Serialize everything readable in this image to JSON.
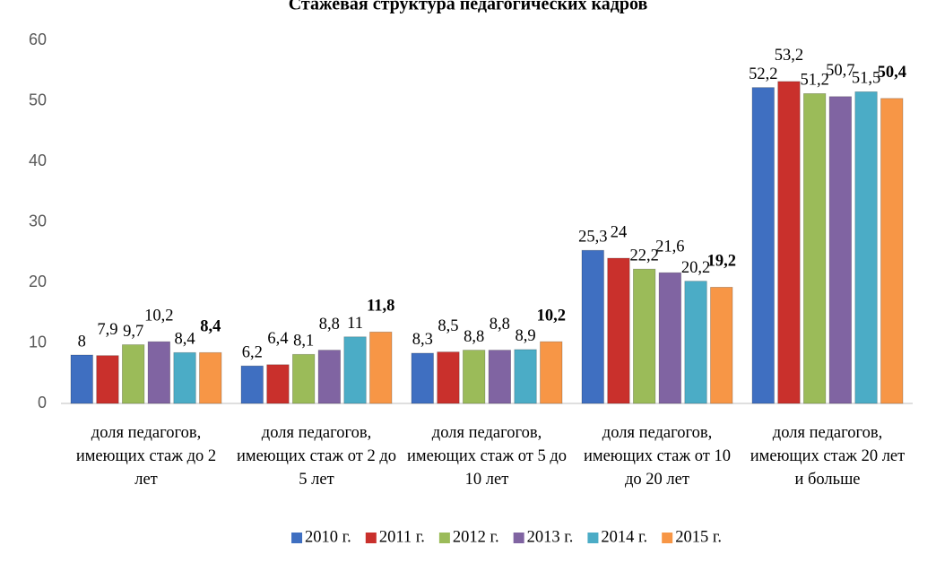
{
  "chart_data": {
    "type": "bar",
    "title": "Стажевая структура педагогических кадров",
    "categories": [
      "доля педагогов, имеющих стаж до 2 лет",
      "доля педагогов, имеющих стаж от 2 до 5 лет",
      "доля педагогов, имеющих стаж от 5 до 10 лет",
      "доля педагогов, имеющих стаж от 10 до 20 лет",
      "доля педагогов, имеющих стаж 20 лет и больше"
    ],
    "series": [
      {
        "name": "2010 г.",
        "color": "#3f6fc1",
        "values": [
          8,
          6.2,
          8.3,
          25.3,
          52.2
        ],
        "value_labels": [
          "8",
          "6,2",
          "8,3",
          "25,3",
          "52,2"
        ]
      },
      {
        "name": "2011 г.",
        "color": "#c9302c",
        "values": [
          7.9,
          6.4,
          8.5,
          24,
          53.2
        ],
        "value_labels": [
          "7,9",
          "6,4",
          "8,5",
          "24",
          "53,2"
        ]
      },
      {
        "name": "2012 г.",
        "color": "#9bbb59",
        "values": [
          9.7,
          8.1,
          8.8,
          22.2,
          51.2
        ],
        "value_labels": [
          "9,7",
          "8,1",
          "8,8",
          "22,2",
          "51,2"
        ]
      },
      {
        "name": "2013 г.",
        "color": "#8064a2",
        "values": [
          10.2,
          8.8,
          8.8,
          21.6,
          50.7
        ],
        "value_labels": [
          "10,2",
          "8,8",
          "8,8",
          "21,6",
          "50,7"
        ]
      },
      {
        "name": "2014 г.",
        "color": "#4bacc6",
        "values": [
          8.4,
          11,
          8.9,
          20.2,
          51.5
        ],
        "value_labels": [
          "8,4",
          "11",
          "8,9",
          "20,2",
          "51,5"
        ]
      },
      {
        "name": "2015 г.",
        "color": "#f79646",
        "values": [
          8.4,
          11.8,
          10.2,
          19.2,
          50.4
        ],
        "value_labels": [
          "8,4",
          "11,8",
          "10,2",
          "19,2",
          "50,4"
        ],
        "bold_labels": true
      }
    ],
    "ylim": [
      0,
      60
    ],
    "yticks": [
      0,
      10,
      20,
      30,
      40,
      50,
      60
    ],
    "grid": false,
    "legend": "bottom"
  }
}
